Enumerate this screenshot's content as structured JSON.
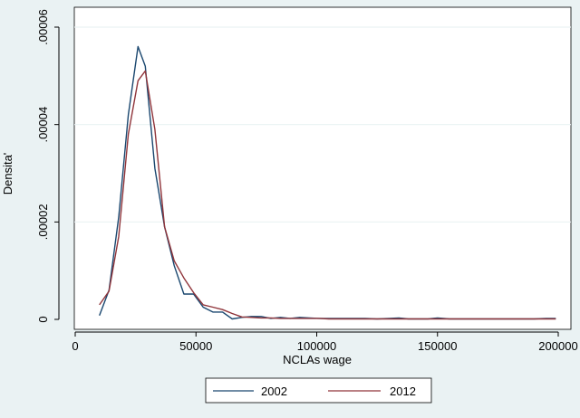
{
  "chart_data": {
    "type": "line",
    "title": "",
    "xlabel": "NCLAs wage",
    "ylabel": "Densita'",
    "xlim": [
      0,
      200000
    ],
    "ylim": [
      0,
      6e-05
    ],
    "x_ticks": [
      0,
      50000,
      100000,
      150000,
      200000
    ],
    "x_tick_labels": [
      "0",
      "50000",
      "100000",
      "150000",
      "200000"
    ],
    "y_ticks": [
      0,
      2e-05,
      4e-05,
      6e-05
    ],
    "y_tick_labels": [
      "0",
      ".00002",
      ".00004",
      ".00006"
    ],
    "grid": true,
    "legend_position": "bottom",
    "series": [
      {
        "name": "2002",
        "color": "#1a476f",
        "x": [
          10000,
          14000,
          18000,
          22000,
          26000,
          29000,
          33000,
          37000,
          41000,
          45000,
          49000,
          53000,
          57000,
          61000,
          65000,
          69000,
          73000,
          77000,
          81000,
          85000,
          89000,
          93000,
          97000,
          101000,
          105000,
          110000,
          115000,
          120000,
          125000,
          130000,
          134000,
          138000,
          142000,
          146000,
          150000,
          155000,
          160000,
          165000,
          170000,
          175000,
          180000,
          185000,
          190000,
          195000,
          199000
        ],
        "y": [
          8e-07,
          6e-06,
          2.1e-05,
          4.2e-05,
          5.6e-05,
          5.2e-05,
          3.1e-05,
          1.9e-05,
          1.1e-05,
          5.2e-06,
          5.2e-06,
          2.5e-06,
          1.5e-06,
          1.5e-06,
          1e-07,
          4e-07,
          6e-07,
          6e-07,
          2e-07,
          4e-07,
          2e-07,
          4e-07,
          3e-07,
          2e-07,
          2e-07,
          2e-07,
          2e-07,
          2e-07,
          1e-07,
          2e-07,
          3e-07,
          1e-07,
          1e-07,
          1e-07,
          3e-07,
          1e-07,
          1e-07,
          1e-07,
          1e-07,
          1e-07,
          1e-07,
          1e-07,
          1e-07,
          2e-07,
          2e-07
        ]
      },
      {
        "name": "2012",
        "color": "#90353b",
        "x": [
          10000,
          14000,
          18000,
          22000,
          26000,
          29000,
          33000,
          37000,
          41000,
          45000,
          49000,
          53000,
          57000,
          61000,
          65000,
          69000,
          73000,
          77000,
          81000,
          85000,
          89000,
          93000,
          97000,
          101000,
          105000,
          110000,
          115000,
          120000,
          125000,
          130000,
          134000,
          138000,
          142000,
          146000,
          150000,
          155000,
          160000,
          165000,
          170000,
          175000,
          180000,
          185000,
          190000,
          195000,
          199000
        ],
        "y": [
          3e-06,
          5.8e-06,
          1.7e-05,
          3.8e-05,
          4.9e-05,
          5.1e-05,
          3.9e-05,
          1.9e-05,
          1.2e-05,
          8.5e-06,
          5.5e-06,
          3e-06,
          2.5e-06,
          2e-06,
          1.2e-06,
          5e-07,
          4e-07,
          3e-07,
          3e-07,
          2e-07,
          2e-07,
          2e-07,
          2e-07,
          2e-07,
          1e-07,
          1e-07,
          1e-07,
          1e-07,
          1e-07,
          1e-07,
          1e-07,
          1e-07,
          1e-07,
          1e-07,
          1e-07,
          1e-07,
          1e-07,
          1e-07,
          1e-07,
          1e-07,
          1e-07,
          1e-07,
          1e-07,
          1e-07,
          1e-07
        ]
      }
    ]
  },
  "colors": {
    "outer_background": "#eaf2f3",
    "plot_background": "#ffffff",
    "grid": "#eaf2f3",
    "axis": "#000000"
  }
}
